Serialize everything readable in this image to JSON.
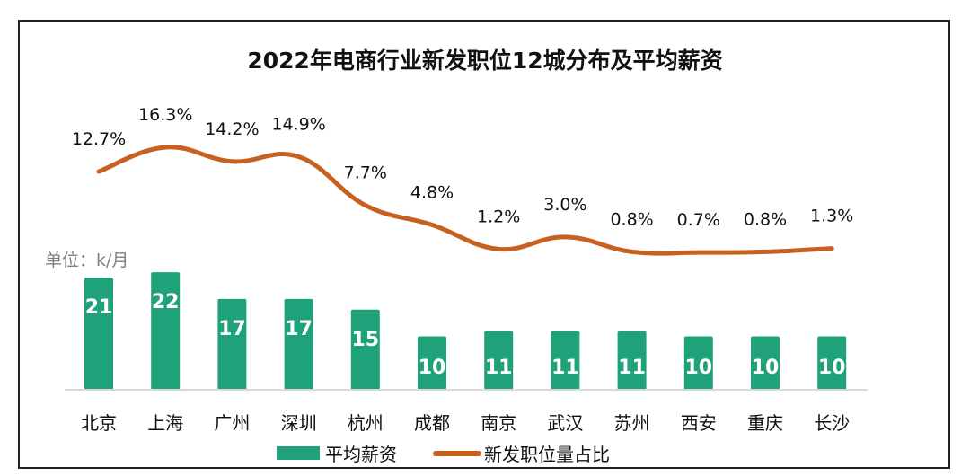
{
  "chart_data": {
    "type": "bar",
    "title": "2022年电商行业新发职位12城分布及平均薪资",
    "unit_label": "单位：k/月",
    "categories": [
      "北京",
      "上海",
      "广州",
      "深圳",
      "杭州",
      "成都",
      "南京",
      "武汉",
      "苏州",
      "西安",
      "重庆",
      "长沙"
    ],
    "series": [
      {
        "name": "平均薪资",
        "type": "bar",
        "color": "#1fa27a",
        "values": [
          21,
          22,
          17,
          17,
          15,
          10,
          11,
          11,
          11,
          10,
          10,
          10
        ],
        "labels": [
          "21",
          "22",
          "17",
          "17",
          "15",
          "10",
          "11",
          "11",
          "11",
          "10",
          "10",
          "10"
        ]
      },
      {
        "name": "新发职位量占比",
        "type": "line",
        "smooth": true,
        "color": "#c8601f",
        "values": [
          12.7,
          16.3,
          14.2,
          14.9,
          7.7,
          4.8,
          1.2,
          3.0,
          0.8,
          0.7,
          0.8,
          1.3
        ],
        "labels": [
          "12.7%",
          "16.3%",
          "14.2%",
          "14.9%",
          "7.7%",
          "4.8%",
          "1.2%",
          "3.0%",
          "0.8%",
          "0.7%",
          "0.8%",
          "1.3%"
        ]
      }
    ],
    "legend": {
      "position": "bottom",
      "items": [
        "平均薪资",
        "新发职位量占比"
      ]
    },
    "grid": false
  }
}
